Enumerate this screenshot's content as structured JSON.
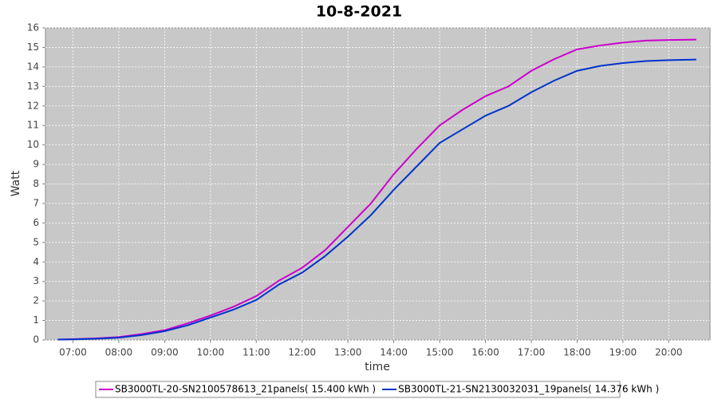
{
  "chart_data": {
    "type": "line",
    "title": "10-8-2021",
    "x_label": "time",
    "y_label": "Watt",
    "x": [
      6.67,
      7,
      7.5,
      8,
      8.5,
      9,
      9.5,
      10,
      10.5,
      11,
      11.5,
      12,
      12.5,
      13,
      13.5,
      14,
      14.5,
      15,
      15.5,
      16,
      16.5,
      17,
      17.5,
      18,
      18.5,
      19,
      19.5,
      20,
      20.6
    ],
    "series": [
      {
        "name": "SB3000TL-20-SN2100578613_21panels( 15.400 kWh )",
        "color": "#cc00cc",
        "values": [
          0.02,
          0.04,
          0.08,
          0.15,
          0.3,
          0.5,
          0.85,
          1.25,
          1.7,
          2.25,
          3.05,
          3.7,
          4.6,
          5.8,
          7.0,
          8.5,
          9.8,
          11.0,
          11.8,
          12.5,
          13.0,
          13.8,
          14.4,
          14.9,
          15.1,
          15.25,
          15.35,
          15.38,
          15.4
        ]
      },
      {
        "name": "SB3000TL-21-SN2130032031_19panels( 14.376 kWh )",
        "color": "#0033cc",
        "values": [
          0.02,
          0.03,
          0.06,
          0.12,
          0.25,
          0.45,
          0.75,
          1.15,
          1.55,
          2.05,
          2.85,
          3.45,
          4.3,
          5.3,
          6.4,
          7.7,
          8.9,
          10.1,
          10.8,
          11.5,
          12.0,
          12.7,
          13.3,
          13.8,
          14.05,
          14.2,
          14.3,
          14.35,
          14.376
        ]
      }
    ],
    "xlim": [
      6.4,
      20.9
    ],
    "xticks": [
      {
        "value": 7,
        "label": "07:00"
      },
      {
        "value": 8,
        "label": "08:00"
      },
      {
        "value": 9,
        "label": "09:00"
      },
      {
        "value": 10,
        "label": "10:00"
      },
      {
        "value": 11,
        "label": "11:00"
      },
      {
        "value": 12,
        "label": "12:00"
      },
      {
        "value": 13,
        "label": "13:00"
      },
      {
        "value": 14,
        "label": "14:00"
      },
      {
        "value": 15,
        "label": "15:00"
      },
      {
        "value": 16,
        "label": "16:00"
      },
      {
        "value": 17,
        "label": "17:00"
      },
      {
        "value": 18,
        "label": "18:00"
      },
      {
        "value": 19,
        "label": "19:00"
      },
      {
        "value": 20,
        "label": "20:00"
      }
    ],
    "ylim": [
      0,
      16
    ],
    "yticks": [
      0,
      1,
      2,
      3,
      4,
      5,
      6,
      7,
      8,
      9,
      10,
      11,
      12,
      13,
      14,
      15,
      16
    ],
    "grid": true
  }
}
